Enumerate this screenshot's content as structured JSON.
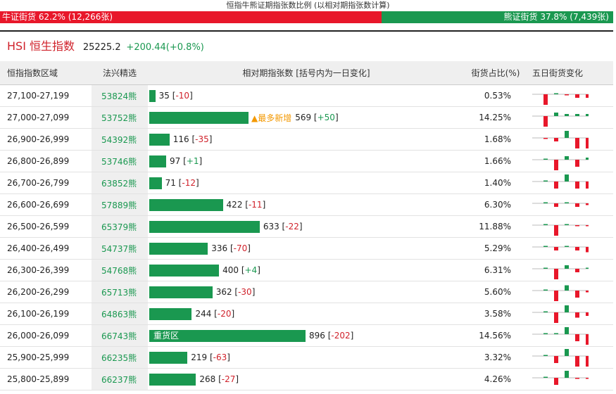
{
  "header": {
    "title": "恒指牛熊证期指张数比例 (以相对期指张数计算)",
    "bull_label": "牛证街货 62.2% (12,266张)",
    "bear_label": "熊证街货 37.8% (7,439张)",
    "bull_pct": 62.2,
    "bear_pct": 37.8
  },
  "index": {
    "name": "HSI 恒生指数",
    "price": "25225.2",
    "change": "+200.44(+0.8%)"
  },
  "columns": {
    "range": "恒指指数区域",
    "code": "法兴精选",
    "contracts": "相对期指张数 [括号内为一日变化]",
    "share": "街货占比(%)",
    "five_day": "五日街货变化"
  },
  "colors": {
    "bull": "#e8172a",
    "bear": "#1a9850",
    "accent": "#f39800"
  },
  "rows": [
    {
      "range": "27,100-27,199",
      "code": "53824熊",
      "contracts": 35,
      "count": "35",
      "change": "-10",
      "share": "0.53%",
      "tag": "",
      "spark": [
        -3,
        0,
        -0.3,
        -1,
        -1
      ]
    },
    {
      "range": "27,000-27,099",
      "code": "53752熊",
      "contracts": 569,
      "count": "569",
      "change": "+50",
      "share": "14.25%",
      "tag": "▲最多新增",
      "spark": [
        -3,
        1,
        0.6,
        0.6,
        0.6
      ]
    },
    {
      "range": "26,900-26,999",
      "code": "54392熊",
      "contracts": 116,
      "count": "116",
      "change": "-35",
      "share": "1.68%",
      "tag": "",
      "spark": [
        -0.3,
        -1,
        2,
        -3,
        -3
      ]
    },
    {
      "range": "26,800-26,899",
      "code": "53746熊",
      "contracts": 97,
      "count": "97",
      "change": "+1",
      "share": "1.66%",
      "tag": "",
      "spark": [
        0,
        -3,
        1,
        -2,
        0.6
      ]
    },
    {
      "range": "26,700-26,799",
      "code": "63852熊",
      "contracts": 71,
      "count": "71",
      "change": "-12",
      "share": "1.40%",
      "tag": "",
      "spark": [
        0,
        -2,
        2,
        -2,
        -2
      ]
    },
    {
      "range": "26,600-26,699",
      "code": "57889熊",
      "contracts": 422,
      "count": "422",
      "change": "-11",
      "share": "6.30%",
      "tag": "",
      "spark": [
        0,
        -1,
        0.3,
        -1,
        -0.5
      ]
    },
    {
      "range": "26,500-26,599",
      "code": "65379熊",
      "contracts": 633,
      "count": "633",
      "change": "-22",
      "share": "11.88%",
      "tag": "",
      "spark": [
        0,
        -3,
        0.3,
        -0.3,
        -0.3
      ]
    },
    {
      "range": "26,400-26,499",
      "code": "54737熊",
      "contracts": 336,
      "count": "336",
      "change": "-70",
      "share": "5.29%",
      "tag": "",
      "spark": [
        0,
        -1,
        0.3,
        -1,
        -1.5
      ]
    },
    {
      "range": "26,300-26,399",
      "code": "54768熊",
      "contracts": 400,
      "count": "400",
      "change": "+4",
      "share": "6.31%",
      "tag": "",
      "spark": [
        0,
        -3,
        1,
        -1,
        0.3
      ]
    },
    {
      "range": "26,200-26,299",
      "code": "65713熊",
      "contracts": 362,
      "count": "362",
      "change": "-30",
      "share": "5.60%",
      "tag": "",
      "spark": [
        0,
        -3,
        1.5,
        -2,
        -0.5
      ]
    },
    {
      "range": "26,100-26,199",
      "code": "64863熊",
      "contracts": 244,
      "count": "244",
      "change": "-20",
      "share": "3.58%",
      "tag": "",
      "spark": [
        0,
        -3,
        2,
        -1.5,
        -1
      ]
    },
    {
      "range": "26,000-26,099",
      "code": "66743熊",
      "contracts": 896,
      "count": "896",
      "change": "-202",
      "share": "14.56%",
      "tag": "重货区",
      "spark": [
        0,
        0.3,
        2,
        -2,
        -3
      ]
    },
    {
      "range": "25,900-25,999",
      "code": "66235熊",
      "contracts": 219,
      "count": "219",
      "change": "-63",
      "share": "3.32%",
      "tag": "",
      "spark": [
        0,
        -2,
        2,
        -3,
        -3
      ]
    },
    {
      "range": "25,800-25,899",
      "code": "66237熊",
      "contracts": 268,
      "count": "268",
      "change": "-27",
      "share": "4.26%",
      "tag": "",
      "spark": [
        0,
        -2,
        2,
        -0.3,
        -0.3
      ]
    }
  ]
}
